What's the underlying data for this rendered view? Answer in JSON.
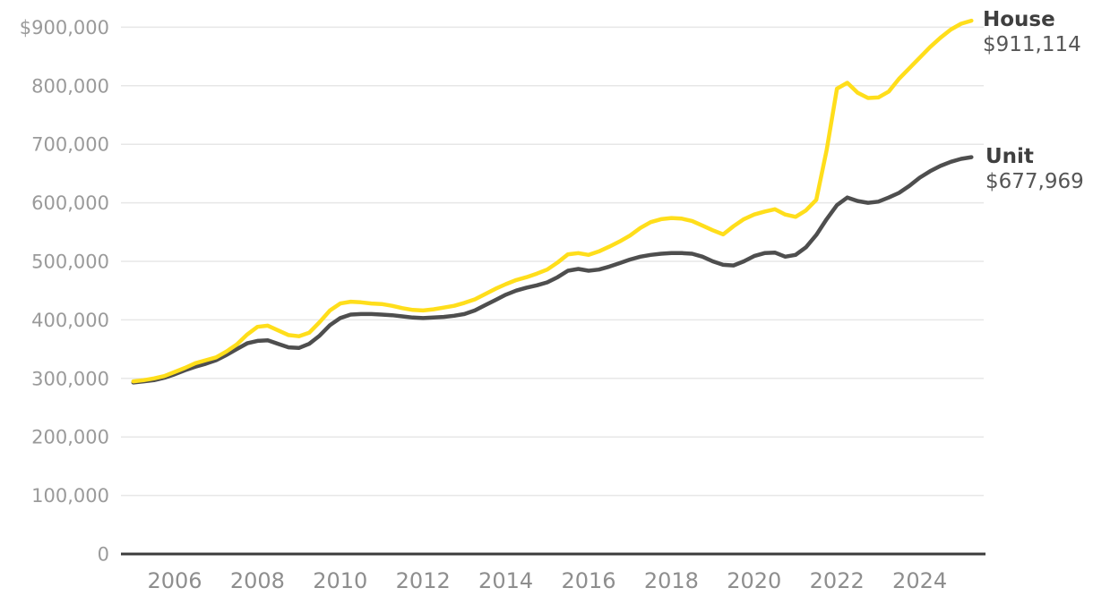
{
  "legend": {
    "house": {
      "name": "House",
      "value": "$911,114"
    },
    "unit": {
      "name": "Unit",
      "value": "$677,969"
    }
  },
  "chart_data": {
    "type": "line",
    "title": "",
    "xlabel": "",
    "ylabel": "",
    "grid": true,
    "legend_position": "right-of-line-end",
    "xlim": [
      2004.95,
      2025.45
    ],
    "ylim": [
      0,
      920000
    ],
    "x_ticks": [
      2006,
      2008,
      2010,
      2012,
      2014,
      2016,
      2018,
      2020,
      2022,
      2024
    ],
    "y_ticks": [
      {
        "value": 900000,
        "label": "$900,000"
      },
      {
        "value": 800000,
        "label": "800,000"
      },
      {
        "value": 700000,
        "label": "700,000"
      },
      {
        "value": 600000,
        "label": "600,000"
      },
      {
        "value": 500000,
        "label": "500,000"
      },
      {
        "value": 400000,
        "label": "400,000"
      },
      {
        "value": 300000,
        "label": "300,000"
      },
      {
        "value": 200000,
        "label": "200,000"
      },
      {
        "value": 100000,
        "label": "100,000"
      },
      {
        "value": 0,
        "label": "0"
      }
    ],
    "colors": {
      "house_line": "#ffde1b",
      "unit_line": "#4e4e4e",
      "grid": "#e7e7e7",
      "axis": "#3c3c3c",
      "y_tick_text": "#9a9a9a",
      "x_tick_text": "#8e8e8e",
      "label_name": "#3f3f3f",
      "label_value": "#565656"
    },
    "x": [
      2005.0,
      2005.25,
      2005.5,
      2005.75,
      2006.0,
      2006.25,
      2006.5,
      2006.75,
      2007.0,
      2007.25,
      2007.5,
      2007.75,
      2008.0,
      2008.25,
      2008.5,
      2008.75,
      2009.0,
      2009.25,
      2009.5,
      2009.75,
      2010.0,
      2010.25,
      2010.5,
      2010.75,
      2011.0,
      2011.25,
      2011.5,
      2011.75,
      2012.0,
      2012.25,
      2012.5,
      2012.75,
      2013.0,
      2013.25,
      2013.5,
      2013.75,
      2014.0,
      2014.25,
      2014.5,
      2014.75,
      2015.0,
      2015.25,
      2015.5,
      2015.75,
      2016.0,
      2016.25,
      2016.5,
      2016.75,
      2017.0,
      2017.25,
      2017.5,
      2017.75,
      2018.0,
      2018.25,
      2018.5,
      2018.75,
      2019.0,
      2019.25,
      2019.5,
      2019.75,
      2020.0,
      2020.25,
      2020.5,
      2020.75,
      2021.0,
      2021.25,
      2021.5,
      2021.75,
      2022.0,
      2022.25,
      2022.5,
      2022.75,
      2023.0,
      2023.25,
      2023.5,
      2023.75,
      2024.0,
      2024.25,
      2024.5,
      2024.75,
      2025.0,
      2025.25
    ],
    "series": [
      {
        "name": "House",
        "color": "#ffde1b",
        "end_value": 911114,
        "end_label": "$911,114",
        "values": [
          295000,
          297000,
          300000,
          304000,
          311000,
          318000,
          326000,
          331000,
          336000,
          346000,
          358000,
          375000,
          388000,
          390000,
          382000,
          374000,
          372000,
          378000,
          396000,
          416000,
          428000,
          431000,
          430000,
          428000,
          427000,
          424000,
          420000,
          417000,
          416000,
          418000,
          421000,
          424000,
          429000,
          435000,
          444000,
          453000,
          461000,
          468000,
          473000,
          479000,
          486000,
          498000,
          512000,
          514000,
          511000,
          517000,
          525000,
          534000,
          544000,
          557000,
          567000,
          572000,
          574000,
          573000,
          569000,
          561000,
          553000,
          546000,
          560000,
          572000,
          580000,
          585000,
          589000,
          580000,
          576000,
          587000,
          605000,
          690000,
          795000,
          805000,
          788000,
          779000,
          780000,
          790000,
          812000,
          830000,
          848000,
          866000,
          882000,
          896000,
          906000,
          911114
        ]
      },
      {
        "name": "Unit",
        "color": "#4e4e4e",
        "end_value": 677969,
        "end_label": "$677,969",
        "values": [
          293000,
          295000,
          297000,
          301000,
          307000,
          314000,
          320000,
          325000,
          331000,
          340000,
          350000,
          360000,
          364000,
          365000,
          359000,
          353000,
          352000,
          359000,
          373000,
          391000,
          403000,
          409000,
          410000,
          410000,
          409000,
          408000,
          406000,
          404000,
          403000,
          404000,
          405000,
          407000,
          410000,
          416000,
          425000,
          434000,
          443000,
          450000,
          455000,
          459000,
          464000,
          473000,
          484000,
          487000,
          484000,
          486000,
          491000,
          497000,
          503000,
          508000,
          511000,
          513000,
          514000,
          514000,
          513000,
          508000,
          500000,
          494000,
          493000,
          500000,
          509000,
          514000,
          515000,
          508000,
          511000,
          524000,
          545000,
          572000,
          596000,
          609000,
          603000,
          600000,
          602000,
          609000,
          617000,
          629000,
          643000,
          654000,
          663000,
          670000,
          675000,
          677969
        ]
      }
    ]
  }
}
